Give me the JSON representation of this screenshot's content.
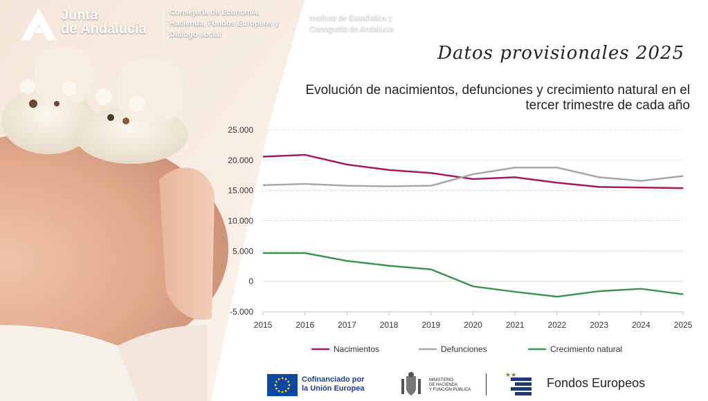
{
  "header": {
    "brand_line1": "Junta",
    "brand_line2": "de Andalucía",
    "dept_lines": [
      "Consejería de Economía,",
      "Hacienda, Fondos Europeos y",
      "Diálogo social"
    ],
    "institute_lines": [
      "Instituto de Estadística y",
      "Cartografía de Andalucía"
    ]
  },
  "datos_label": "Datos provisionales 2025",
  "chart_data": {
    "type": "line",
    "title": "Evolución de nacimientos, defunciones y crecimiento natural en el tercer trimestre de cada año",
    "x": [
      "2015",
      "2016",
      "2017",
      "2018",
      "2019",
      "2020",
      "2021",
      "2022",
      "2023",
      "2024",
      "2025"
    ],
    "series": [
      {
        "name": "Nacimientos",
        "color": "#a3195b",
        "values": [
          20600,
          20900,
          19300,
          18400,
          17900,
          16900,
          17200,
          16300,
          15600,
          15500,
          15400
        ]
      },
      {
        "name": "Defunciones",
        "color": "#a6a6a6",
        "values": [
          15900,
          16100,
          15800,
          15700,
          15800,
          17700,
          18800,
          18800,
          17200,
          16600,
          17400
        ]
      },
      {
        "name": "Crecimiento natural",
        "color": "#3d9451",
        "values": [
          4700,
          4700,
          3400,
          2600,
          2000,
          -800,
          -1700,
          -2500,
          -1600,
          -1200,
          -2100
        ]
      }
    ],
    "ylim": [
      -5000,
      25000
    ],
    "yticks": [
      -5000,
      0,
      5000,
      10000,
      15000,
      20000,
      25000
    ],
    "ytick_labels": [
      "-5.000",
      "0",
      "5.000",
      "10.000",
      "15.000",
      "20.000",
      "25.000"
    ],
    "grid": true,
    "legend": "bottom"
  },
  "footer": {
    "eu_line1": "Cofinanciado por",
    "eu_line2": "la Unión Europea",
    "ministry_lines": [
      "MINISTERIO",
      "DE HACIENDA",
      "Y FUNCIÓN PÚBLICA"
    ],
    "fondos": "Fondos Europeos"
  },
  "colors": {
    "accent": "#a3195b",
    "eu_blue": "#0e47a1"
  }
}
